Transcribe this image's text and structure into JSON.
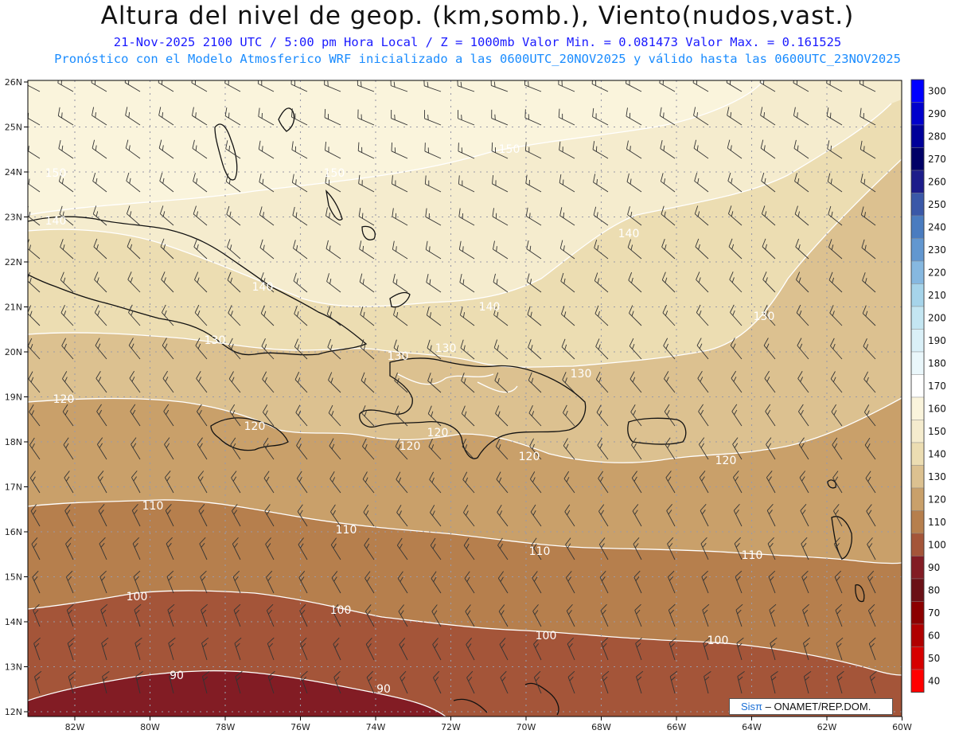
{
  "header": {
    "title": "Altura del nivel de geop. (km,somb.), Viento(nudos,vast.)",
    "subtitle": "21-Nov-2025 2100 UTC / 5:00 pm Hora Local / Z = 1000mb  Valor Min. = 0.081473  Valor Max. = 0.161525",
    "subtitle2": "Pronóstico con el Modelo Atmosferico WRF inicializado a las 0600UTC_20NOV2025 y válido hasta las  0600UTC_23NOV2025"
  },
  "map": {
    "lon_labels": [
      "82W",
      "80W",
      "78W",
      "76W",
      "74W",
      "72W",
      "70W",
      "68W",
      "66W",
      "64W",
      "62W",
      "60W"
    ],
    "lat_labels": [
      "26N",
      "25N",
      "24N",
      "23N",
      "22N",
      "21N",
      "20N",
      "19N",
      "18N",
      "17N",
      "16N",
      "15N",
      "14N",
      "13N",
      "12N"
    ],
    "contour_labels": [
      "150",
      "150",
      "150",
      "140",
      "140",
      "140",
      "140",
      "130",
      "130",
      "130",
      "130",
      "130",
      "120",
      "120",
      "120",
      "120",
      "120",
      "120",
      "110",
      "110",
      "110",
      "110",
      "100",
      "100",
      "100",
      "100",
      "90",
      "90"
    ],
    "fill_colors": {
      "90": "#821c24",
      "100": "#a45539",
      "110": "#b67f4d",
      "120": "#c9a06a",
      "130": "#dcc190",
      "140": "#ecddb2",
      "150": "#f5ecce",
      "160": "#faf4dc"
    }
  },
  "legend": {
    "levels": [
      "300",
      "290",
      "280",
      "270",
      "260",
      "250",
      "240",
      "230",
      "220",
      "210",
      "200",
      "190",
      "180",
      "170",
      "160",
      "150",
      "140",
      "130",
      "120",
      "110",
      "100",
      "90",
      "80",
      "70",
      "60",
      "50",
      "40"
    ],
    "colors": [
      "#0000ff",
      "#0000cc",
      "#000099",
      "#000066",
      "#1c1c8a",
      "#3a58a8",
      "#4a7cc0",
      "#6297d0",
      "#86b8e0",
      "#a6d4ea",
      "#c4e6f2",
      "#daf0f8",
      "#eaf7fb",
      "#ffffff",
      "#faf4dc",
      "#f5ecce",
      "#ecddb2",
      "#dcc190",
      "#c9a06a",
      "#b67f4d",
      "#a45539",
      "#821c24",
      "#6a1016",
      "#8b0000",
      "#b00000",
      "#d60000",
      "#ff0000"
    ]
  },
  "credit": {
    "brand": "Sisπ",
    "text": " – ONAMET/REP.DOM."
  }
}
